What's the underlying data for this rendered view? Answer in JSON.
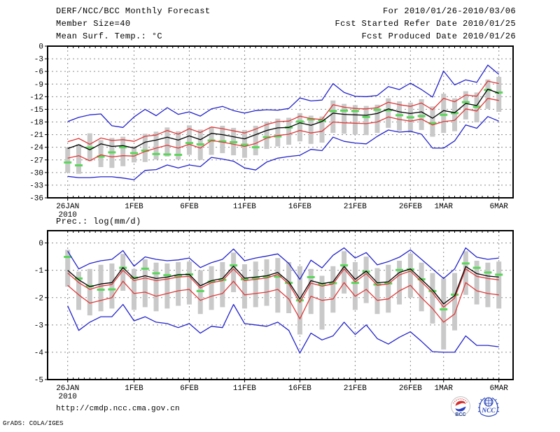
{
  "header": {
    "title": "DERF/NCC/BCC Monthly Forecast",
    "member_size": "Member Size=40",
    "for_range": "For 2010/01/26-2010/03/06",
    "refer_date": "Fcst Started Refer Date 2010/01/25",
    "produced_date": "Fcst Produced Date 2010/01/26"
  },
  "footer": {
    "url": "http://cmdp.ncc.cma.gov.cn",
    "credit": "GrADS: COLA/IGES",
    "logos": [
      {
        "name": "bcc-logo",
        "label": "BCC"
      },
      {
        "name": "ncc-logo",
        "label": "NCC"
      }
    ]
  },
  "colors": {
    "line_max_min": "#2323cc",
    "line_quartile": "#e03838",
    "line_mean": "#000000",
    "obs_green": "#5ad65a",
    "spread_bar": "#c9c9c9",
    "grid": "#8c8c8c",
    "frame": "#000000"
  },
  "chart_data": [
    {
      "type": "line",
      "label": "Mean Surf. Temp.: °C",
      "ylim": [
        0,
        -36
      ],
      "yticks": [
        0,
        -3,
        -6,
        -9,
        -12,
        -15,
        -18,
        -21,
        -24,
        -27,
        -30,
        -33,
        -36
      ],
      "grid": true,
      "x_dates": [
        "26JAN",
        "27JAN",
        "28JAN",
        "29JAN",
        "30JAN",
        "31JAN",
        "1FEB",
        "2FEB",
        "3FEB",
        "4FEB",
        "5FEB",
        "6FEB",
        "7FEB",
        "8FEB",
        "9FEB",
        "10FEB",
        "11FEB",
        "12FEB",
        "13FEB",
        "14FEB",
        "15FEB",
        "16FEB",
        "17FEB",
        "18FEB",
        "19FEB",
        "20FEB",
        "21FEB",
        "22FEB",
        "23FEB",
        "24FEB",
        "25FEB",
        "26FEB",
        "27FEB",
        "28FEB",
        "1MAR",
        "2MAR",
        "3MAR",
        "4MAR",
        "5MAR",
        "6MAR"
      ],
      "xticks": [
        {
          "label": "26JAN",
          "sub": "2010",
          "index": 0
        },
        {
          "label": "1FEB",
          "index": 6
        },
        {
          "label": "6FEB",
          "index": 11
        },
        {
          "label": "11FEB",
          "index": 16
        },
        {
          "label": "16FEB",
          "index": 21
        },
        {
          "label": "21FEB",
          "index": 26
        },
        {
          "label": "26FEB",
          "index": 31
        },
        {
          "label": "1MAR",
          "index": 34
        },
        {
          "label": "6MAR",
          "index": 39
        }
      ],
      "series": [
        {
          "name": "ensemble-max",
          "color": "#2323cc",
          "values": [
            -17.9,
            -16.9,
            -16.3,
            -16.1,
            -18.9,
            -19.3,
            -16.8,
            -15.0,
            -16.5,
            -14.6,
            -16.2,
            -15.6,
            -16.6,
            -14.9,
            -14.3,
            -15.3,
            -15.9,
            -15.3,
            -15.1,
            -15.2,
            -14.8,
            -12.3,
            -13.0,
            -12.8,
            -8.9,
            -11.0,
            -11.9,
            -12.0,
            -11.7,
            -9.6,
            -10.3,
            -8.8,
            -10.3,
            -12.1,
            -5.9,
            -9.2,
            -8.0,
            -8.6,
            -4.5,
            -6.7
          ]
        },
        {
          "name": "ensemble-min",
          "color": "#2323cc",
          "values": [
            -30.9,
            -31.2,
            -31.2,
            -31.0,
            -31.0,
            -31.3,
            -31.7,
            -29.5,
            -29.3,
            -28.2,
            -28.9,
            -28.2,
            -28.6,
            -26.4,
            -26.8,
            -27.3,
            -28.9,
            -29.4,
            -27.5,
            -26.6,
            -26.2,
            -25.9,
            -24.5,
            -24.8,
            -21.6,
            -22.6,
            -23.0,
            -23.2,
            -21.4,
            -19.9,
            -20.4,
            -20.2,
            -20.9,
            -24.2,
            -24.2,
            -22.5,
            -18.7,
            -19.5,
            -16.7,
            -17.8
          ]
        },
        {
          "name": "upper-quartile",
          "color": "#e03838",
          "values": [
            -22.7,
            -21.9,
            -23.3,
            -21.8,
            -22.4,
            -22.2,
            -22.6,
            -21.4,
            -21.1,
            -20.0,
            -20.9,
            -19.6,
            -20.5,
            -19.2,
            -19.6,
            -20.1,
            -20.6,
            -19.7,
            -18.6,
            -17.9,
            -17.8,
            -16.6,
            -17.2,
            -17.4,
            -13.9,
            -14.5,
            -14.8,
            -14.9,
            -14.6,
            -13.3,
            -13.9,
            -14.3,
            -13.5,
            -15.1,
            -12.4,
            -13.2,
            -11.6,
            -11.9,
            -8.3,
            -8.9
          ]
        },
        {
          "name": "lower-quartile",
          "color": "#e03838",
          "values": [
            -26.6,
            -26.0,
            -27.2,
            -25.8,
            -26.3,
            -26.0,
            -26.1,
            -25.0,
            -24.2,
            -23.5,
            -24.2,
            -23.3,
            -24.2,
            -22.4,
            -22.8,
            -23.3,
            -23.8,
            -23.1,
            -21.8,
            -21.2,
            -20.9,
            -20.0,
            -20.6,
            -20.2,
            -18.0,
            -18.2,
            -18.3,
            -18.4,
            -18.0,
            -16.8,
            -17.4,
            -17.8,
            -17.3,
            -18.7,
            -17.9,
            -17.6,
            -14.9,
            -15.4,
            -12.4,
            -12.9
          ]
        },
        {
          "name": "ensemble-mean",
          "color": "#000000",
          "values": [
            -24.3,
            -23.4,
            -24.6,
            -23.2,
            -23.8,
            -23.6,
            -24.2,
            -22.8,
            -22.3,
            -21.6,
            -22.3,
            -21.3,
            -22.2,
            -20.7,
            -21.0,
            -21.5,
            -22.0,
            -21.0,
            -20.0,
            -19.4,
            -19.3,
            -18.2,
            -18.8,
            -17.9,
            -15.9,
            -16.2,
            -16.3,
            -16.4,
            -16.0,
            -14.9,
            -15.6,
            -16.0,
            -15.6,
            -17.1,
            -15.3,
            -15.8,
            -13.6,
            -14.1,
            -10.2,
            -11.2
          ]
        }
      ],
      "obs": {
        "name": "observation-green",
        "color": "#5ad65a",
        "values": [
          -27.6,
          -28.3,
          -24.1,
          -26.2,
          -25.2,
          -24.0,
          -25.4,
          -24.8,
          -25.6,
          -25.7,
          -25.8,
          -23.0,
          -23.3,
          -22.4,
          -22.6,
          -22.8,
          -23.4,
          -24.0,
          -21.6,
          -21.4,
          -19.3,
          -17.9,
          -17.4,
          -17.7,
          -15.4,
          -15.3,
          -15.4,
          -16.8,
          -15.1,
          -15.2,
          -16.4,
          -16.9,
          -16.6,
          -18.3,
          -16.3,
          -15.9,
          -13.3,
          -14.4,
          -10.4,
          -11.0
        ]
      },
      "bars": {
        "name": "member-spread",
        "color": "#c9c9c9",
        "hi": [
          -24.0,
          -23.3,
          -20.7,
          -22.3,
          -21.8,
          -21.5,
          -23.7,
          -20.8,
          -20.3,
          -19.3,
          -20.2,
          -18.8,
          -19.8,
          -19.2,
          -18.9,
          -19.4,
          -19.9,
          -18.9,
          -17.9,
          -17.2,
          -17.0,
          -15.9,
          -16.5,
          -16.7,
          -12.9,
          -13.7,
          -14.0,
          -14.2,
          -13.9,
          -12.4,
          -13.1,
          -13.4,
          -12.6,
          -14.3,
          -11.3,
          -12.4,
          -10.7,
          -11.0,
          -7.9,
          -7.3
        ],
        "lo": [
          -30.0,
          -30.3,
          -27.3,
          -28.7,
          -28.9,
          -28.5,
          -27.6,
          -27.5,
          -26.9,
          -26.2,
          -26.9,
          -25.8,
          -27.0,
          -25.8,
          -25.4,
          -25.9,
          -26.5,
          -25.9,
          -24.4,
          -23.8,
          -23.4,
          -22.6,
          -23.2,
          -22.9,
          -20.6,
          -20.8,
          -21.0,
          -21.1,
          -20.6,
          -19.4,
          -20.1,
          -20.5,
          -19.9,
          -21.5,
          -20.6,
          -20.2,
          -17.4,
          -18.1,
          -14.9,
          -15.6
        ]
      }
    },
    {
      "type": "line",
      "label": "Prec.: log(mm/d)",
      "ylim": [
        0.45,
        -5
      ],
      "yticks": [
        0,
        -1,
        -2,
        -3,
        -4,
        -5
      ],
      "grid": true,
      "x_dates": [
        "26JAN",
        "27JAN",
        "28JAN",
        "29JAN",
        "30JAN",
        "31JAN",
        "1FEB",
        "2FEB",
        "3FEB",
        "4FEB",
        "5FEB",
        "6FEB",
        "7FEB",
        "8FEB",
        "9FEB",
        "10FEB",
        "11FEB",
        "12FEB",
        "13FEB",
        "14FEB",
        "15FEB",
        "16FEB",
        "17FEB",
        "18FEB",
        "19FEB",
        "20FEB",
        "21FEB",
        "22FEB",
        "23FEB",
        "24FEB",
        "25FEB",
        "26FEB",
        "27FEB",
        "28FEB",
        "1MAR",
        "2MAR",
        "3MAR",
        "4MAR",
        "5MAR",
        "6MAR"
      ],
      "xticks": [
        {
          "label": "26JAN",
          "sub": "2010",
          "index": 0
        },
        {
          "label": "1FEB",
          "index": 6
        },
        {
          "label": "6FEB",
          "index": 11
        },
        {
          "label": "11FEB",
          "index": 16
        },
        {
          "label": "16FEB",
          "index": 21
        },
        {
          "label": "21FEB",
          "index": 26
        },
        {
          "label": "26FEB",
          "index": 31
        },
        {
          "label": "1MAR",
          "index": 34
        },
        {
          "label": "6MAR",
          "index": 39
        }
      ],
      "series": [
        {
          "name": "ensemble-max",
          "color": "#2323cc",
          "values": [
            -0.3,
            -0.95,
            -0.75,
            -0.65,
            -0.6,
            -0.28,
            -0.85,
            -0.51,
            -0.6,
            -0.65,
            -0.62,
            -0.55,
            -0.9,
            -0.72,
            -0.6,
            -0.22,
            -0.65,
            -0.55,
            -0.48,
            -0.4,
            -0.75,
            -1.33,
            -0.63,
            -0.91,
            -0.45,
            -0.18,
            -0.55,
            -0.35,
            -0.8,
            -0.68,
            -0.52,
            -0.25,
            -0.6,
            -0.95,
            -1.3,
            -0.95,
            -0.18,
            -0.52,
            -0.6,
            -0.55
          ]
        },
        {
          "name": "ensemble-min",
          "color": "#2323cc",
          "values": [
            -2.3,
            -3.2,
            -2.9,
            -2.7,
            -2.7,
            -2.25,
            -2.85,
            -2.7,
            -2.9,
            -2.95,
            -3.1,
            -2.95,
            -3.3,
            -3.05,
            -3.1,
            -2.25,
            -2.95,
            -3.0,
            -3.05,
            -2.9,
            -3.2,
            -4.03,
            -3.3,
            -3.55,
            -3.4,
            -2.9,
            -3.35,
            -3.0,
            -3.5,
            -3.7,
            -3.45,
            -3.25,
            -3.6,
            -3.98,
            -4.0,
            -4.0,
            -3.4,
            -3.75,
            -3.75,
            -3.8
          ]
        },
        {
          "name": "upper-quartile",
          "color": "#e03838",
          "values": [
            -1.1,
            -1.45,
            -1.7,
            -1.58,
            -1.52,
            -1.0,
            -1.38,
            -1.28,
            -1.38,
            -1.32,
            -1.25,
            -1.22,
            -1.65,
            -1.45,
            -1.38,
            -0.95,
            -1.38,
            -1.33,
            -1.28,
            -1.15,
            -1.5,
            -2.18,
            -1.47,
            -1.58,
            -1.5,
            -0.95,
            -1.42,
            -1.12,
            -1.55,
            -1.5,
            -1.17,
            -1.03,
            -1.42,
            -1.82,
            -2.35,
            -2.02,
            -0.95,
            -1.22,
            -1.3,
            -1.35
          ]
        },
        {
          "name": "lower-quartile",
          "color": "#e03838",
          "values": [
            -1.55,
            -1.9,
            -2.2,
            -2.1,
            -2.0,
            -1.4,
            -1.85,
            -1.8,
            -1.95,
            -1.85,
            -1.75,
            -1.7,
            -2.1,
            -1.95,
            -1.85,
            -1.4,
            -1.9,
            -1.85,
            -1.8,
            -1.7,
            -2.05,
            -2.78,
            -1.95,
            -2.1,
            -2.05,
            -1.45,
            -1.95,
            -1.7,
            -2.1,
            -2.05,
            -1.75,
            -1.55,
            -2.0,
            -2.4,
            -2.9,
            -2.6,
            -1.45,
            -1.75,
            -1.85,
            -1.9
          ]
        },
        {
          "name": "ensemble-mean",
          "color": "#000000",
          "values": [
            -1.0,
            -1.35,
            -1.6,
            -1.5,
            -1.45,
            -0.9,
            -1.3,
            -1.2,
            -1.3,
            -1.25,
            -1.16,
            -1.15,
            -1.57,
            -1.38,
            -1.3,
            -0.85,
            -1.29,
            -1.25,
            -1.2,
            -1.08,
            -1.42,
            -2.05,
            -1.38,
            -1.49,
            -1.42,
            -0.86,
            -1.33,
            -1.03,
            -1.46,
            -1.42,
            -1.08,
            -0.95,
            -1.33,
            -1.72,
            -2.23,
            -1.93,
            -0.86,
            -1.12,
            -1.21,
            -1.25
          ]
        }
      ],
      "obs": {
        "name": "observation-green",
        "color": "#5ad65a",
        "values": [
          -0.51,
          -1.3,
          -1.58,
          -1.71,
          -1.7,
          -0.91,
          -1.27,
          -0.94,
          -1.11,
          -1.18,
          -1.2,
          -1.15,
          -1.76,
          -1.42,
          -1.35,
          -0.82,
          -1.33,
          -1.28,
          -1.23,
          -1.23,
          -1.46,
          -2.1,
          -1.25,
          -1.5,
          -1.47,
          -0.82,
          -1.46,
          -1.05,
          -1.52,
          -1.48,
          -0.99,
          -0.97,
          -1.33,
          -1.76,
          -2.43,
          -1.89,
          -0.75,
          -0.91,
          -1.08,
          -1.16
        ]
      },
      "bars": {
        "name": "member-spread",
        "color": "#c9c9c9",
        "hi": [
          -0.25,
          -1.05,
          -0.95,
          -0.8,
          -0.75,
          -0.4,
          -0.95,
          -0.6,
          -0.72,
          -0.75,
          -0.7,
          -0.68,
          -1.0,
          -0.85,
          -0.7,
          -0.35,
          -0.78,
          -0.68,
          -0.6,
          -0.55,
          -0.7,
          -0.85,
          -0.95,
          -1.2,
          -0.85,
          -0.3,
          -0.7,
          -0.5,
          -0.92,
          -0.8,
          -0.65,
          -0.38,
          -0.72,
          -1.1,
          -1.3,
          -1.1,
          -0.3,
          -0.65,
          -0.72,
          -0.68
        ],
        "lo": [
          -1.6,
          -2.45,
          -2.65,
          -2.5,
          -2.4,
          -1.75,
          -2.45,
          -2.35,
          -2.5,
          -2.4,
          -2.3,
          -2.25,
          -2.6,
          -2.45,
          -2.35,
          -1.8,
          -2.4,
          -2.35,
          -2.3,
          -2.55,
          -2.57,
          -3.35,
          -2.6,
          -3.17,
          -2.55,
          -1.85,
          -2.45,
          -2.2,
          -2.6,
          -2.55,
          -2.25,
          -2.0,
          -2.5,
          -2.95,
          -3.9,
          -3.2,
          -1.9,
          -2.25,
          -2.35,
          -2.4
        ]
      }
    }
  ]
}
